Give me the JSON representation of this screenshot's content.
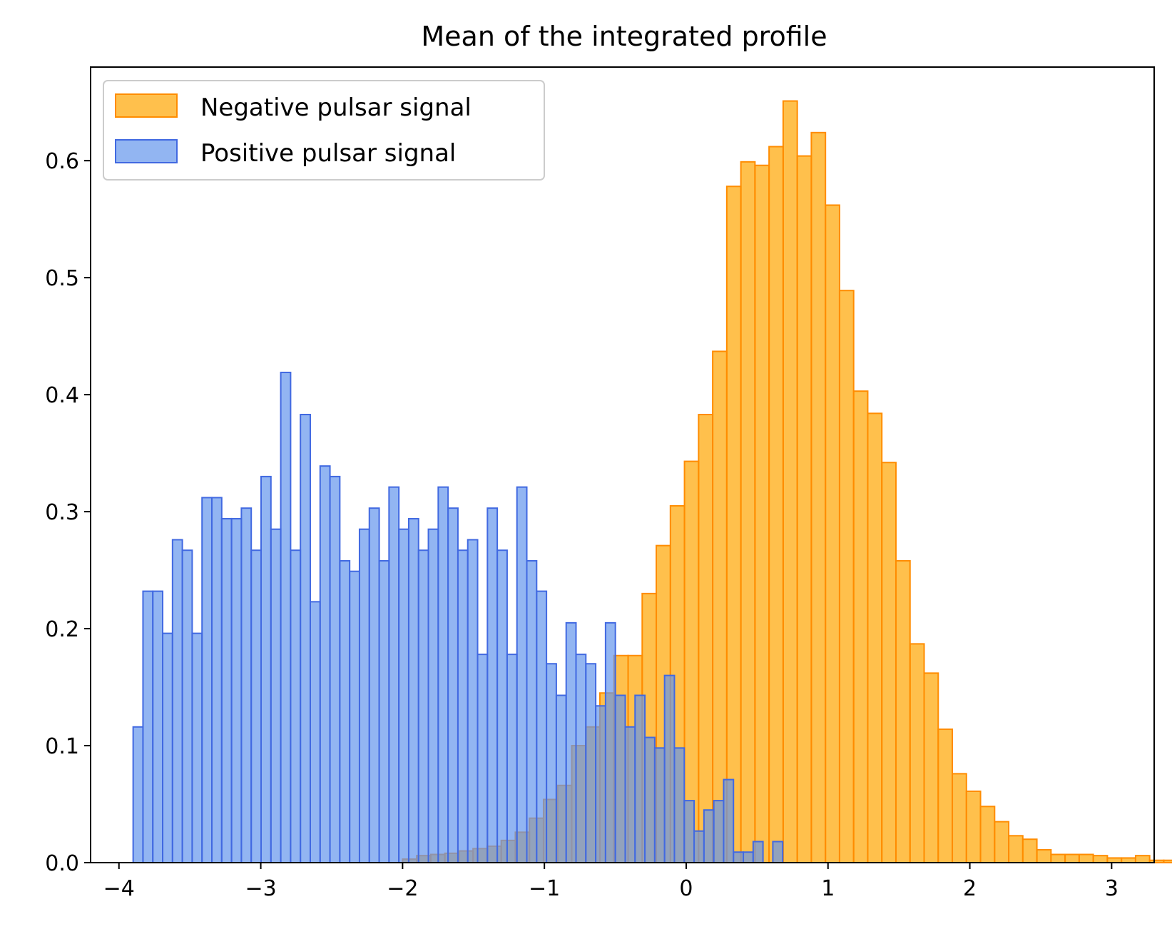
{
  "chart_data": {
    "type": "bar",
    "subtype": "overlaid-histogram",
    "title": "Mean of the integrated profile",
    "xlabel": "",
    "ylabel": "",
    "xlim": [
      -4.2,
      3.3
    ],
    "ylim": [
      0,
      0.68
    ],
    "x_ticks": [
      -4,
      -3,
      -2,
      -1,
      0,
      1,
      2,
      3
    ],
    "x_tick_labels": [
      "−4",
      "−3",
      "−2",
      "−1",
      "0",
      "1",
      "2",
      "3"
    ],
    "y_ticks": [
      0.0,
      0.1,
      0.2,
      0.3,
      0.4,
      0.5,
      0.6
    ],
    "y_tick_labels": [
      "0.0",
      "0.1",
      "0.2",
      "0.3",
      "0.4",
      "0.5",
      "0.6"
    ],
    "grid": false,
    "legend_position": "upper-left",
    "colors": {
      "negative_fill": "#ffa500",
      "negative_edge": "#ff8c00",
      "positive_fill": "#6495ed",
      "positive_edge": "#4169e1"
    },
    "series": [
      {
        "name": "Negative pulsar signal",
        "bin_start": -2.0,
        "bin_width": 0.0994,
        "values": [
          0.003,
          0.006,
          0.007,
          0.008,
          0.01,
          0.012,
          0.014,
          0.019,
          0.026,
          0.038,
          0.054,
          0.066,
          0.1,
          0.116,
          0.145,
          0.177,
          0.177,
          0.23,
          0.271,
          0.305,
          0.343,
          0.383,
          0.437,
          0.578,
          0.599,
          0.596,
          0.612,
          0.651,
          0.604,
          0.624,
          0.562,
          0.489,
          0.403,
          0.384,
          0.342,
          0.258,
          0.187,
          0.162,
          0.114,
          0.076,
          0.061,
          0.048,
          0.035,
          0.023,
          0.02,
          0.011,
          0.007,
          0.007,
          0.007,
          0.006,
          0.004,
          0.004,
          0.006,
          0.002,
          0.002
        ]
      },
      {
        "name": "Positive pulsar signal",
        "bin_start": -3.9,
        "bin_width": 0.0694,
        "values": [
          0.116,
          0.232,
          0.232,
          0.196,
          0.276,
          0.267,
          0.196,
          0.312,
          0.312,
          0.294,
          0.294,
          0.303,
          0.267,
          0.33,
          0.285,
          0.419,
          0.267,
          0.383,
          0.223,
          0.339,
          0.33,
          0.258,
          0.249,
          0.285,
          0.303,
          0.258,
          0.321,
          0.285,
          0.294,
          0.267,
          0.285,
          0.321,
          0.303,
          0.267,
          0.276,
          0.178,
          0.303,
          0.267,
          0.178,
          0.321,
          0.258,
          0.232,
          0.17,
          0.143,
          0.205,
          0.178,
          0.17,
          0.134,
          0.205,
          0.143,
          0.116,
          0.143,
          0.107,
          0.098,
          0.16,
          0.098,
          0.053,
          0.027,
          0.045,
          0.053,
          0.071,
          0.009,
          0.009,
          0.018,
          0.0,
          0.018
        ]
      }
    ]
  }
}
